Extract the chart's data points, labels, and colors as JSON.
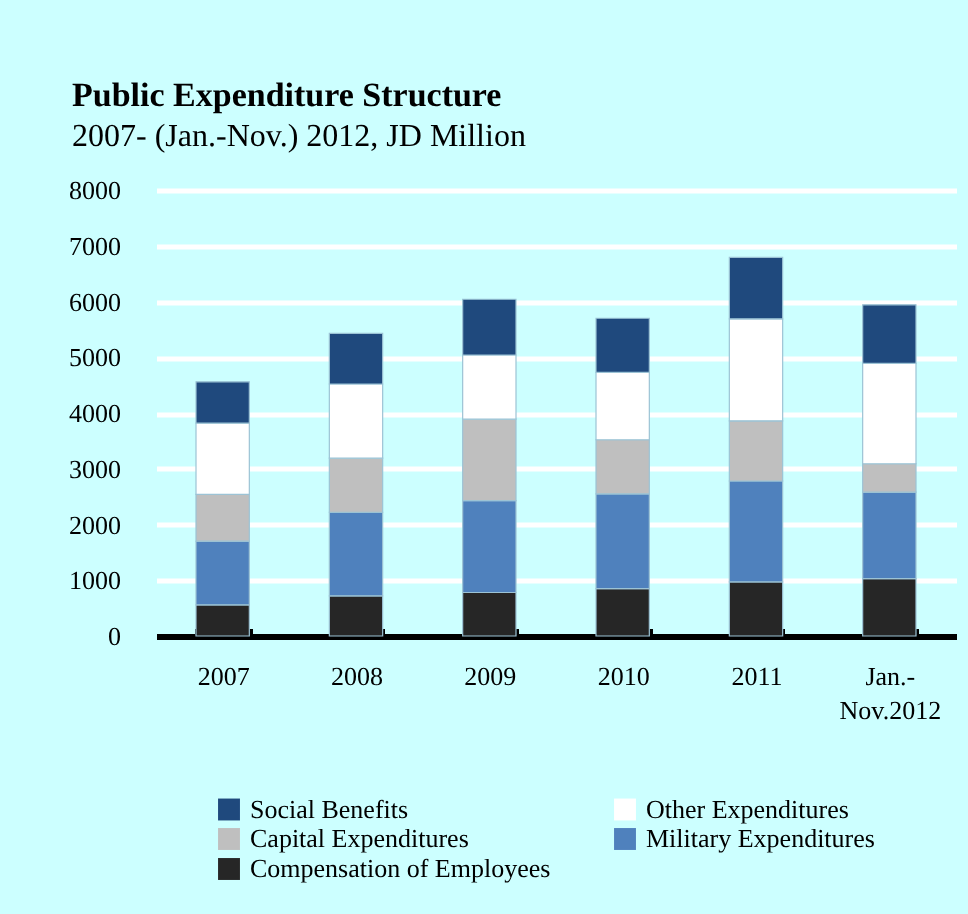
{
  "chart_data": {
    "type": "bar",
    "title": "Public Expenditure Structure",
    "subtitle": "2007- (Jan.-Nov.) 2012, JD Million",
    "categories": [
      "2007",
      "2008",
      "2009",
      "2010",
      "2011",
      "Jan.- Nov.2012"
    ],
    "stacked": true,
    "series": [
      {
        "name": "Compensation of Employees",
        "color": "#262626",
        "values": [
          560,
          720,
          780,
          850,
          970,
          1030
        ]
      },
      {
        "name": "Military Expenditures",
        "color": "#4f81bd",
        "values": [
          1140,
          1500,
          1650,
          1700,
          1810,
          1550
        ]
      },
      {
        "name": "Capital Expenditures",
        "color": "#bfbfbf",
        "values": [
          840,
          970,
          1460,
          970,
          1080,
          510
        ]
      },
      {
        "name": "Other Expenditures",
        "color": "#ffffff",
        "values": [
          1280,
          1330,
          1150,
          1210,
          1830,
          1800
        ]
      },
      {
        "name": "Social Benefits",
        "color": "#1f497d",
        "values": [
          740,
          910,
          1000,
          970,
          1100,
          1050
        ]
      }
    ],
    "ylim": [
      0,
      8000
    ],
    "yticks": [
      0,
      1000,
      2000,
      3000,
      4000,
      5000,
      6000,
      7000,
      8000
    ],
    "grid": "y",
    "legend": "bottom"
  }
}
